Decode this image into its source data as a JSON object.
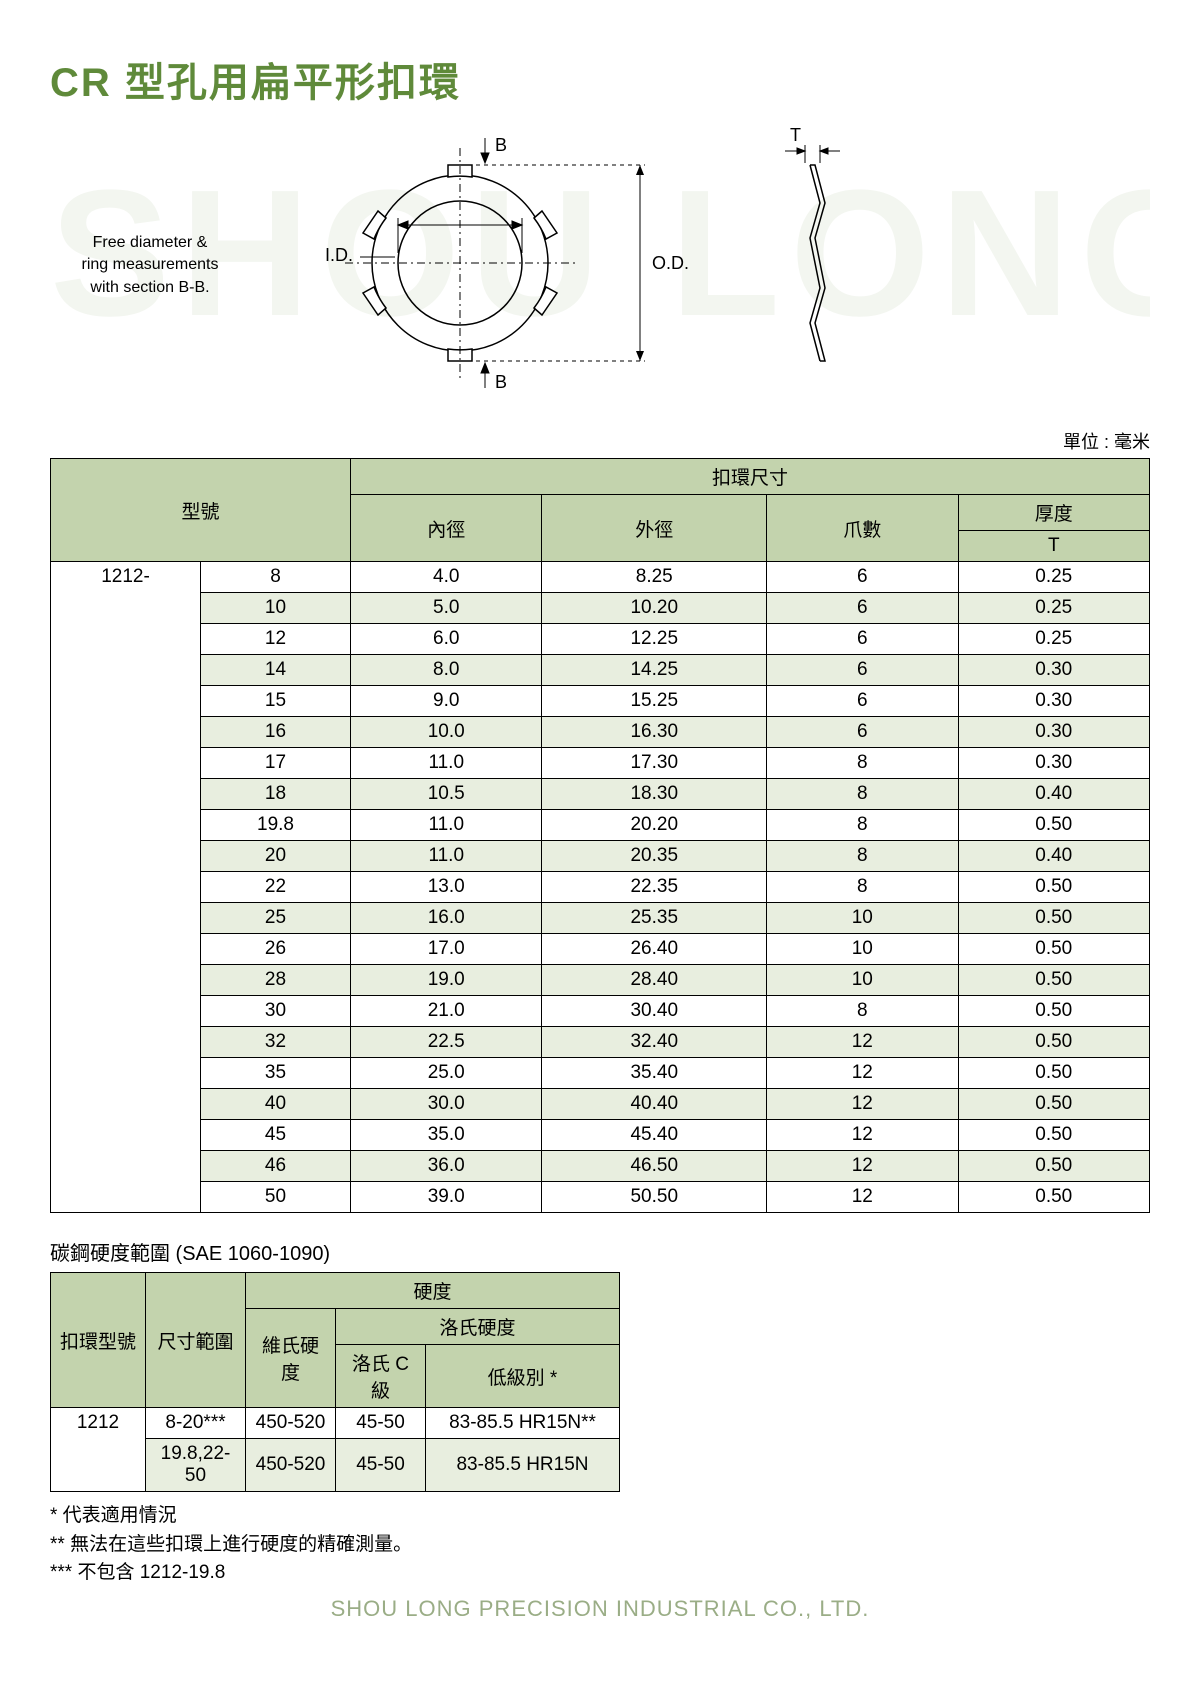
{
  "title": "CR 型孔用扁平形扣環",
  "watermark": "SHOU LONG",
  "diagram": {
    "caption_l1": "Free diameter &",
    "caption_l2": "ring measurements",
    "caption_l3": "with section B-B.",
    "label_B_top": "B",
    "label_B_bot": "B",
    "label_ID": "I.D.",
    "label_OD": "O.D.",
    "label_T": "T"
  },
  "unit_label": "單位 : 毫米",
  "main_table": {
    "header": {
      "model": "型號",
      "dims": "扣環尺寸",
      "id": "內徑",
      "od": "外徑",
      "prongs": "爪數",
      "thickness": "厚度",
      "T": "T"
    },
    "prefix": "1212-",
    "rows": [
      {
        "size": "8",
        "id": "4.0",
        "od": "8.25",
        "prongs": "6",
        "t": "0.25",
        "alt": false
      },
      {
        "size": "10",
        "id": "5.0",
        "od": "10.20",
        "prongs": "6",
        "t": "0.25",
        "alt": true
      },
      {
        "size": "12",
        "id": "6.0",
        "od": "12.25",
        "prongs": "6",
        "t": "0.25",
        "alt": false
      },
      {
        "size": "14",
        "id": "8.0",
        "od": "14.25",
        "prongs": "6",
        "t": "0.30",
        "alt": true
      },
      {
        "size": "15",
        "id": "9.0",
        "od": "15.25",
        "prongs": "6",
        "t": "0.30",
        "alt": false
      },
      {
        "size": "16",
        "id": "10.0",
        "od": "16.30",
        "prongs": "6",
        "t": "0.30",
        "alt": true
      },
      {
        "size": "17",
        "id": "11.0",
        "od": "17.30",
        "prongs": "8",
        "t": "0.30",
        "alt": false
      },
      {
        "size": "18",
        "id": "10.5",
        "od": "18.30",
        "prongs": "8",
        "t": "0.40",
        "alt": true
      },
      {
        "size": "19.8",
        "id": "11.0",
        "od": "20.20",
        "prongs": "8",
        "t": "0.50",
        "alt": false
      },
      {
        "size": "20",
        "id": "11.0",
        "od": "20.35",
        "prongs": "8",
        "t": "0.40",
        "alt": true
      },
      {
        "size": "22",
        "id": "13.0",
        "od": "22.35",
        "prongs": "8",
        "t": "0.50",
        "alt": false
      },
      {
        "size": "25",
        "id": "16.0",
        "od": "25.35",
        "prongs": "10",
        "t": "0.50",
        "alt": true
      },
      {
        "size": "26",
        "id": "17.0",
        "od": "26.40",
        "prongs": "10",
        "t": "0.50",
        "alt": false
      },
      {
        "size": "28",
        "id": "19.0",
        "od": "28.40",
        "prongs": "10",
        "t": "0.50",
        "alt": true
      },
      {
        "size": "30",
        "id": "21.0",
        "od": "30.40",
        "prongs": "8",
        "t": "0.50",
        "alt": false
      },
      {
        "size": "32",
        "id": "22.5",
        "od": "32.40",
        "prongs": "12",
        "t": "0.50",
        "alt": true
      },
      {
        "size": "35",
        "id": "25.0",
        "od": "35.40",
        "prongs": "12",
        "t": "0.50",
        "alt": false
      },
      {
        "size": "40",
        "id": "30.0",
        "od": "40.40",
        "prongs": "12",
        "t": "0.50",
        "alt": true
      },
      {
        "size": "45",
        "id": "35.0",
        "od": "45.40",
        "prongs": "12",
        "t": "0.50",
        "alt": false
      },
      {
        "size": "46",
        "id": "36.0",
        "od": "46.50",
        "prongs": "12",
        "t": "0.50",
        "alt": true
      },
      {
        "size": "50",
        "id": "39.0",
        "od": "50.50",
        "prongs": "12",
        "t": "0.50",
        "alt": false
      }
    ]
  },
  "hardness": {
    "title": "碳鋼硬度範圍 (SAE 1060-1090)",
    "header": {
      "model": "扣環型號",
      "range": "尺寸範圍",
      "hardness": "硬度",
      "vickers": "維氏硬度",
      "rockwell": "洛氏硬度",
      "rockwell_c": "洛氏 C 級",
      "low": "低級別 *"
    },
    "model": "1212",
    "rows": [
      {
        "range": "8-20***",
        "vick": "450-520",
        "rc": "45-50",
        "low": "83-85.5 HR15N**",
        "alt": false
      },
      {
        "range": "19.8,22-50",
        "vick": "450-520",
        "rc": "45-50",
        "low": "83-85.5 HR15N",
        "alt": true
      }
    ]
  },
  "notes": {
    "n1": "* 代表適用情況",
    "n2": "** 無法在這些扣環上進行硬度的精確測量。",
    "n3": "*** 不包含 1212-19.8"
  },
  "footer": "SHOU LONG PRECISION INDUSTRIAL CO., LTD."
}
